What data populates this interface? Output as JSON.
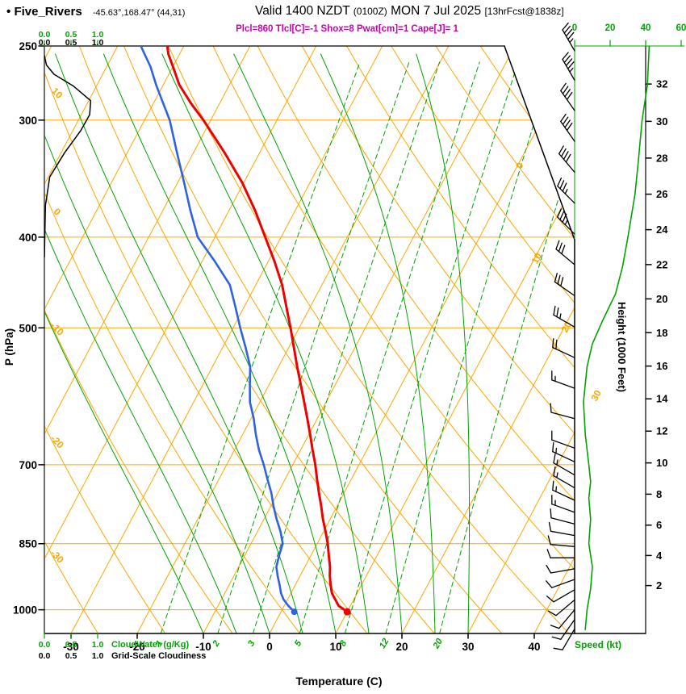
{
  "header": {
    "bullet": "•",
    "station": "Five_Rivers",
    "coords": "-45.63°,168.47° (44,31)",
    "valid_label": "Valid 1400 NZDT",
    "valid_utc": "(0100Z)",
    "valid_date": "MON 7 Jul 2025",
    "forecast_info": "[13hrFcst@1838z]",
    "indices": "Plcl=860 Tlcl[C]=-1 Shox=8 Pwat[cm]=1 Cape[J]= 1"
  },
  "axes": {
    "pressure_title": "P (hPa)",
    "pressure_ticks_hpa": [
      250,
      300,
      400,
      500,
      700,
      850,
      1000
    ],
    "temperature_title": "Temperature (C)",
    "temperature_ticks_c": [
      -30,
      -20,
      -10,
      0,
      10,
      20,
      30,
      40
    ],
    "height_title": "Height (1000 Feet)",
    "height_ticks_kft": [
      2,
      4,
      6,
      8,
      10,
      12,
      14,
      16,
      18,
      20,
      22,
      24,
      26,
      28,
      30,
      32
    ],
    "speed_title": "Speed (kt)",
    "speed_ticks_kt": [
      0,
      20,
      40,
      60
    ],
    "cloudwater_title": "CloudWater (g/Kg)",
    "cloudiness_title": "Grid-Scale Cloudiness",
    "cloud_scale": [
      "0.0",
      "0.5",
      "1.0"
    ]
  },
  "colors": {
    "grid_orange": "#ffa600",
    "green": "#00a400",
    "temperature_red": "#ee0000",
    "dewpoint_blue": "#2f62e0",
    "magenta": "#cc00aa",
    "black": "#000000"
  },
  "chart_data": {
    "type": "skewt",
    "isobars_hpa": [
      300,
      400,
      500,
      700,
      850,
      1000
    ],
    "isotherms_c": [
      -80,
      -70,
      -60,
      -50,
      -40,
      -30,
      -20,
      -10,
      0,
      10,
      20,
      30,
      40,
      50
    ],
    "dry_adiabats_c": [
      -40,
      -30,
      -20,
      -10,
      0,
      10,
      20,
      30,
      40,
      50,
      60,
      70,
      80,
      90,
      100,
      110
    ],
    "dry_adiabat_labels_c": [
      10,
      0,
      -10,
      -20,
      -30
    ],
    "isotherm_labels_right_c": [
      0,
      10,
      20,
      30
    ],
    "moist_adiabats_start_c": [
      -10,
      -5,
      0,
      5,
      10,
      15,
      20,
      25,
      30
    ],
    "mixing_ratio_gkg": [
      1,
      2,
      3,
      5,
      8,
      12,
      20
    ],
    "surface": {
      "pressure_hpa": 1005,
      "temperature_c": 10,
      "dewpoint_c": 2
    },
    "temperature_profile": [
      [
        1005,
        10.0
      ],
      [
        990,
        8.2
      ],
      [
        975,
        7.2
      ],
      [
        960,
        6.2
      ],
      [
        940,
        5.3
      ],
      [
        920,
        4.5
      ],
      [
        900,
        3.8
      ],
      [
        875,
        2.7
      ],
      [
        850,
        1.6
      ],
      [
        825,
        0.3
      ],
      [
        800,
        -1.1
      ],
      [
        775,
        -2.4
      ],
      [
        750,
        -3.8
      ],
      [
        725,
        -5.2
      ],
      [
        700,
        -6.6
      ],
      [
        675,
        -8.2
      ],
      [
        650,
        -9.8
      ],
      [
        625,
        -11.5
      ],
      [
        600,
        -13.3
      ],
      [
        575,
        -15.2
      ],
      [
        550,
        -17.2
      ],
      [
        525,
        -19.2
      ],
      [
        500,
        -21.3
      ],
      [
        475,
        -23.6
      ],
      [
        450,
        -26.0
      ],
      [
        425,
        -29.0
      ],
      [
        400,
        -32.4
      ],
      [
        375,
        -36.0
      ],
      [
        350,
        -40.2
      ],
      [
        325,
        -45.3
      ],
      [
        300,
        -51.1
      ],
      [
        288,
        -54.3
      ],
      [
        275,
        -57.6
      ],
      [
        263,
        -60.0
      ],
      [
        255,
        -61.7
      ],
      [
        250,
        -62.5
      ]
    ],
    "dewpoint_profile": [
      [
        1005,
        2.0
      ],
      [
        990,
        0.6
      ],
      [
        975,
        -0.6
      ],
      [
        960,
        -1.5
      ],
      [
        940,
        -2.4
      ],
      [
        920,
        -3.4
      ],
      [
        900,
        -4.3
      ],
      [
        875,
        -4.8
      ],
      [
        850,
        -5.2
      ],
      [
        825,
        -6.5
      ],
      [
        800,
        -8.1
      ],
      [
        775,
        -9.6
      ],
      [
        750,
        -11.0
      ],
      [
        725,
        -12.7
      ],
      [
        700,
        -14.4
      ],
      [
        675,
        -16.3
      ],
      [
        650,
        -18.0
      ],
      [
        625,
        -19.6
      ],
      [
        600,
        -21.5
      ],
      [
        575,
        -22.9
      ],
      [
        550,
        -24.3
      ],
      [
        525,
        -26.5
      ],
      [
        500,
        -28.9
      ],
      [
        475,
        -31.3
      ],
      [
        450,
        -33.9
      ],
      [
        425,
        -38.0
      ],
      [
        400,
        -42.6
      ],
      [
        375,
        -45.8
      ],
      [
        350,
        -49.0
      ],
      [
        325,
        -52.5
      ],
      [
        300,
        -56.2
      ],
      [
        288,
        -58.5
      ],
      [
        275,
        -61.1
      ],
      [
        263,
        -63.4
      ],
      [
        255,
        -65.3
      ],
      [
        250,
        -66.5
      ]
    ],
    "wind_barbs": [
      [
        253,
        330,
        45
      ],
      [
        272,
        330,
        45
      ],
      [
        293,
        325,
        40
      ],
      [
        316,
        325,
        40
      ],
      [
        341,
        320,
        40
      ],
      [
        368,
        315,
        35
      ],
      [
        397,
        315,
        35
      ],
      [
        428,
        310,
        30
      ],
      [
        462,
        305,
        30
      ],
      [
        499,
        300,
        25
      ],
      [
        538,
        295,
        20
      ],
      [
        580,
        290,
        15
      ],
      [
        625,
        285,
        12
      ],
      [
        672,
        290,
        12
      ],
      [
        695,
        295,
        15
      ],
      [
        718,
        300,
        15
      ],
      [
        741,
        300,
        15
      ],
      [
        764,
        295,
        15
      ],
      [
        787,
        290,
        15
      ],
      [
        810,
        285,
        12
      ],
      [
        833,
        280,
        12
      ],
      [
        856,
        275,
        12
      ],
      [
        880,
        270,
        10
      ],
      [
        904,
        260,
        10
      ],
      [
        928,
        250,
        10
      ],
      [
        952,
        240,
        10
      ],
      [
        976,
        230,
        10
      ],
      [
        1000,
        220,
        10
      ],
      [
        1024,
        215,
        10
      ],
      [
        1048,
        210,
        10
      ]
    ],
    "wind_speed_profile": [
      [
        250,
        42
      ],
      [
        275,
        41
      ],
      [
        300,
        38
      ],
      [
        330,
        36
      ],
      [
        360,
        34
      ],
      [
        400,
        30
      ],
      [
        430,
        27
      ],
      [
        460,
        23
      ],
      [
        490,
        16
      ],
      [
        520,
        10
      ],
      [
        550,
        7
      ],
      [
        600,
        5
      ],
      [
        650,
        6
      ],
      [
        700,
        8
      ],
      [
        730,
        9
      ],
      [
        760,
        8
      ],
      [
        800,
        9
      ],
      [
        850,
        8
      ],
      [
        900,
        10
      ],
      [
        950,
        9
      ],
      [
        1000,
        7
      ],
      [
        1050,
        6
      ]
    ],
    "cloudiness_profile": [
      [
        420,
        0
      ],
      [
        370,
        0.02
      ],
      [
        345,
        0.1
      ],
      [
        325,
        0.38
      ],
      [
        308,
        0.68
      ],
      [
        296,
        0.85
      ],
      [
        286,
        0.87
      ],
      [
        276,
        0.55
      ],
      [
        268,
        0.18
      ],
      [
        262,
        0.04
      ],
      [
        256,
        0
      ]
    ],
    "cloudwater_profile": [
      [
        1060,
        0
      ],
      [
        250,
        0
      ]
    ]
  }
}
